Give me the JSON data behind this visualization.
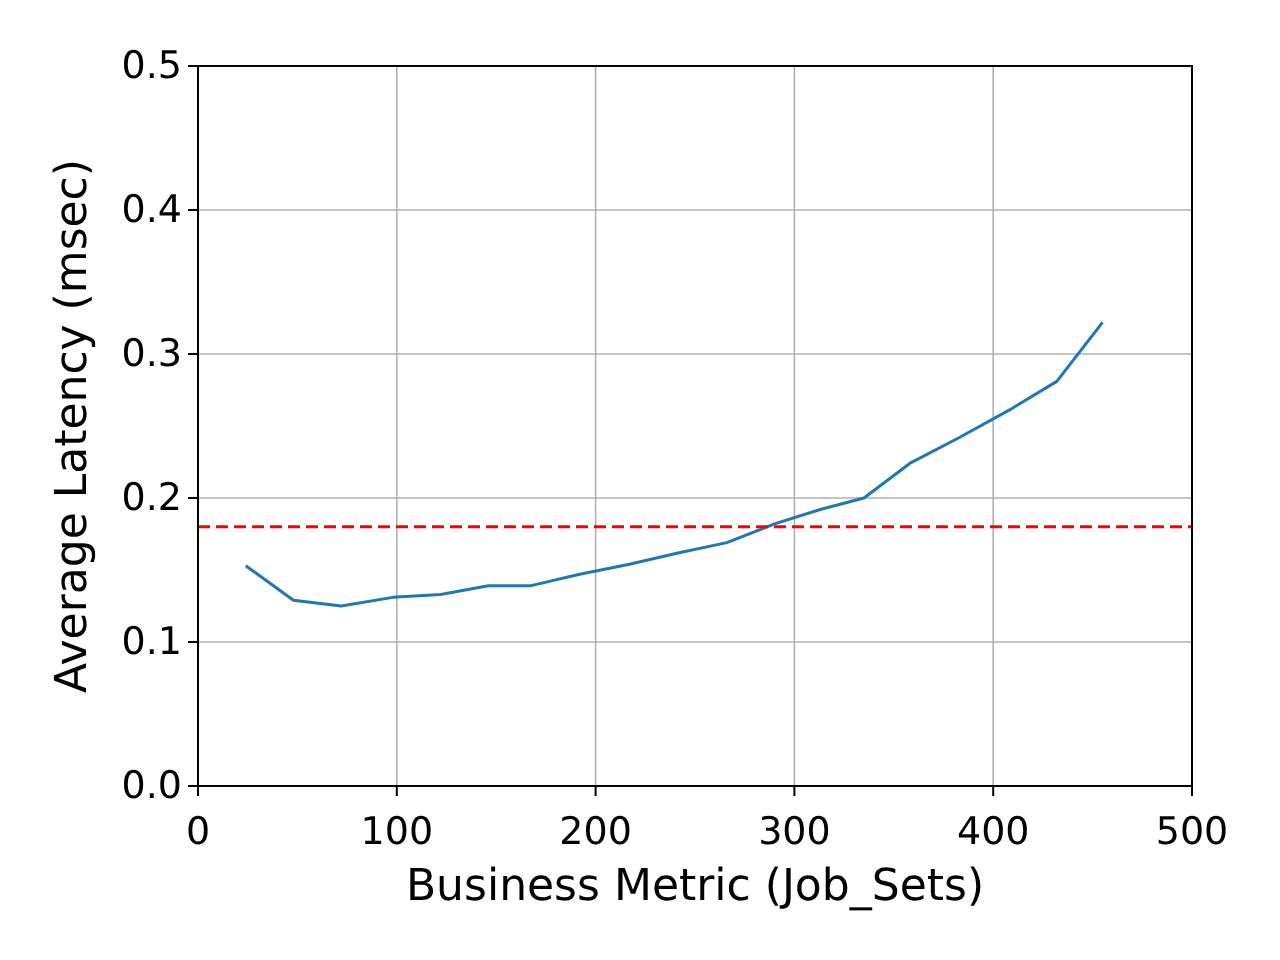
{
  "chart_data": {
    "type": "line",
    "xlabel": "Business Metric (Job_Sets)",
    "ylabel": "Average Latency (msec)",
    "x": [
      24,
      48,
      72,
      98,
      122,
      146,
      167,
      192,
      217,
      242,
      266,
      290,
      313,
      335,
      358,
      383,
      408,
      432,
      455
    ],
    "series": [
      {
        "color": "#1f77b4",
        "values": [
          0.153,
          0.129,
          0.125,
          0.131,
          0.133,
          0.139,
          0.139,
          0.147,
          0.154,
          0.162,
          0.169,
          0.182,
          0.192,
          0.2,
          0.224,
          0.242,
          0.261,
          0.281,
          0.322
        ]
      }
    ],
    "xlim": [
      0,
      500
    ],
    "xticks": [
      0,
      100,
      200,
      300,
      400,
      500
    ],
    "ylim": [
      0,
      0.5
    ],
    "yticks": [
      {
        "value": 0,
        "label": "0.0"
      },
      {
        "value": 0.1,
        "label": "0.1"
      },
      {
        "value": 0.2,
        "label": "0.2"
      },
      {
        "value": 0.3,
        "label": "0.3"
      },
      {
        "value": 0.4,
        "label": "0.4"
      },
      {
        "value": 0.5,
        "label": "0.5"
      }
    ],
    "grid": true,
    "line_style": "solid",
    "marker": "none",
    "ref_lines": [
      {
        "axis": "y",
        "value": 0.18,
        "color": "#ff0000",
        "line_style": "dashed"
      }
    ]
  }
}
